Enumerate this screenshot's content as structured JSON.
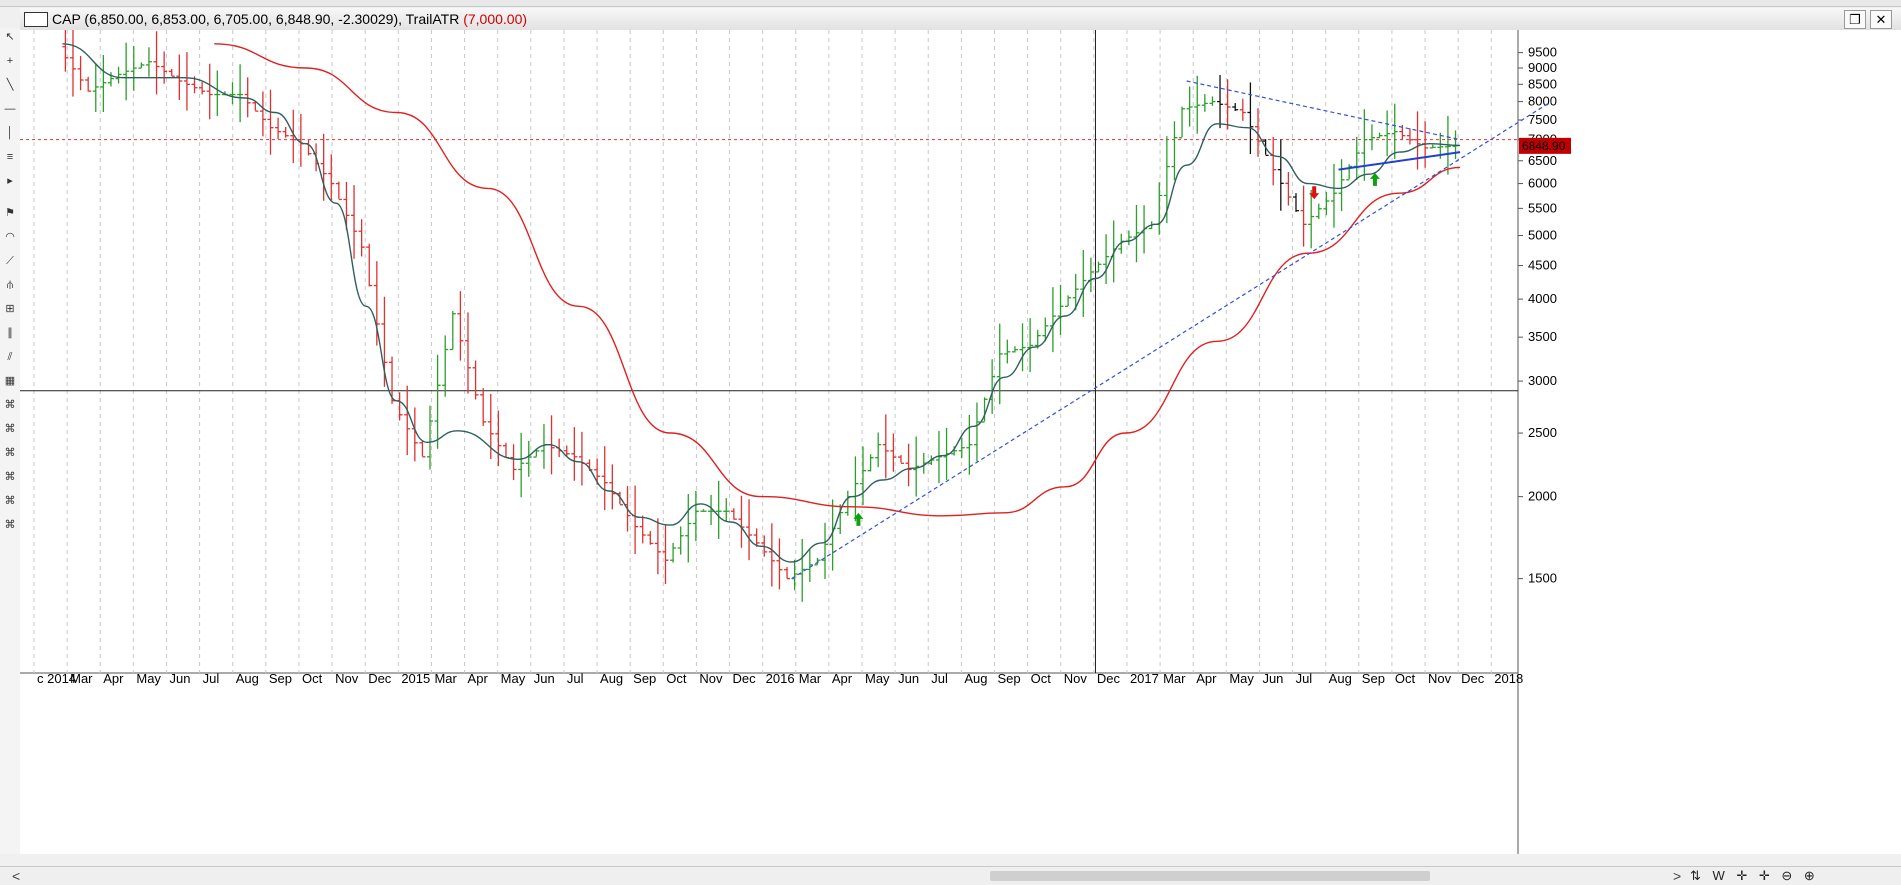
{
  "window": {
    "symbol_line": "CAP (6,850.00, 6,853.00, 6,705.00, 6,848.90, -2.30029), TrailATR",
    "indicator_param": "(7,000.00)",
    "restore_icon": "restore-icon",
    "close_icon": "close-icon"
  },
  "toolbar": {
    "tools": [
      "cursor-icon",
      "crosshair-icon",
      "line-icon",
      "hline-icon",
      "vline-icon",
      "fib-icon",
      "arrow-icon",
      "flag-icon",
      "arc-icon",
      "fan-icon",
      "pitchfork-icon",
      "gann-icon",
      "channel-icon",
      "parallel-icon",
      "grid-icon",
      "cross-tool-icon",
      "cross-tool-icon",
      "cross-tool-icon",
      "cross-tool-icon",
      "cross-tool-icon",
      "cross-tool-icon"
    ]
  },
  "scrollbar": {
    "left_arrow": "<",
    "right_arrow": ">",
    "tools_label": "⇅ W ✛ ✛ ⊖ ⊕"
  },
  "chart_data": {
    "type": "bar",
    "y_scale": "log",
    "ylim": [
      1100,
      10000
    ],
    "y_ticks": [
      1500,
      2000,
      2500,
      3000,
      3500,
      4000,
      4500,
      5000,
      5500,
      6000,
      6500,
      7000,
      7500,
      8000,
      8500,
      9000,
      9500
    ],
    "last_price_label": "6848.90",
    "reference_line": 7000,
    "crosshair": {
      "date": "2016-11",
      "price": 2900
    },
    "x_labels": [
      "c 2014",
      "Mar",
      "Apr",
      "May",
      "Jun",
      "Jul",
      "Aug",
      "Sep",
      "Oct",
      "Nov",
      "Dec",
      "2015",
      "Mar",
      "Apr",
      "May",
      "Jun",
      "Jul",
      "Aug",
      "Sep",
      "Oct",
      "Nov",
      "Dec",
      "2016",
      "Mar",
      "Apr",
      "May",
      "Jun",
      "Jul",
      "Aug",
      "Sep",
      "Oct",
      "Nov",
      "Dec",
      "2017",
      "Mar",
      "Apr",
      "May",
      "Jun",
      "Jul",
      "Aug",
      "Sep",
      "Oct",
      "Nov",
      "Dec",
      "2018"
    ],
    "price_path": [
      [
        "2014-01",
        9700
      ],
      [
        "2014-02",
        8300
      ],
      [
        "2014-03",
        8800
      ],
      [
        "2014-04",
        9200
      ],
      [
        "2014-05",
        8600
      ],
      [
        "2014-06",
        8200
      ],
      [
        "2014-07",
        8200
      ],
      [
        "2014-08",
        7300
      ],
      [
        "2014-09",
        6900
      ],
      [
        "2014-10",
        6000
      ],
      [
        "2014-11",
        4800
      ],
      [
        "2014-12",
        2800
      ],
      [
        "2015-01",
        2300
      ],
      [
        "2015-02",
        3800
      ],
      [
        "2015-03",
        2600
      ],
      [
        "2015-04",
        2200
      ],
      [
        "2015-05",
        2400
      ],
      [
        "2015-06",
        2300
      ],
      [
        "2015-07",
        2100
      ],
      [
        "2015-08",
        1800
      ],
      [
        "2015-09",
        1600
      ],
      [
        "2015-10",
        1900
      ],
      [
        "2015-11",
        1900
      ],
      [
        "2015-12",
        1700
      ],
      [
        "2016-01",
        1500
      ],
      [
        "2016-02",
        1600
      ],
      [
        "2016-03",
        2000
      ],
      [
        "2016-04",
        2400
      ],
      [
        "2016-05",
        2200
      ],
      [
        "2016-06",
        2300
      ],
      [
        "2016-07",
        2400
      ],
      [
        "2016-08",
        3300
      ],
      [
        "2016-09",
        3400
      ],
      [
        "2016-10",
        3900
      ],
      [
        "2016-11",
        4400
      ],
      [
        "2016-12",
        4900
      ],
      [
        "2017-01",
        5200
      ],
      [
        "2017-02",
        7800
      ],
      [
        "2017-03",
        8000
      ],
      [
        "2017-04",
        7700
      ],
      [
        "2017-05",
        6300
      ],
      [
        "2017-06",
        5200
      ],
      [
        "2017-07",
        5800
      ],
      [
        "2017-08",
        7000
      ],
      [
        "2017-09",
        7200
      ],
      [
        "2017-10",
        6800
      ],
      [
        "2017-11",
        6850
      ]
    ],
    "series": [
      {
        "name": "",
        "color": "#2f5f5f",
        "points": [
          [
            "2014-01",
            9800
          ],
          [
            "2014-03",
            8700
          ],
          [
            "2014-05",
            8700
          ],
          [
            "2014-07",
            8100
          ],
          [
            "2014-08",
            7700
          ],
          [
            "2014-09",
            6900
          ],
          [
            "2014-10",
            5600
          ],
          [
            "2014-11",
            3900
          ],
          [
            "2014-12",
            2800
          ],
          [
            "2015-01",
            2420
          ],
          [
            "2015-02",
            2520
          ],
          [
            "2015-04",
            2280
          ],
          [
            "2015-05",
            2400
          ],
          [
            "2015-06",
            2260
          ],
          [
            "2015-07",
            2040
          ],
          [
            "2015-08",
            1860
          ],
          [
            "2015-09",
            1810
          ],
          [
            "2015-10",
            1950
          ],
          [
            "2015-11",
            1830
          ],
          [
            "2015-12",
            1680
          ],
          [
            "2016-01",
            1590
          ],
          [
            "2016-02",
            1700
          ],
          [
            "2016-03",
            2000
          ],
          [
            "2016-04",
            2120
          ],
          [
            "2016-05",
            2210
          ],
          [
            "2016-06",
            2310
          ],
          [
            "2016-07",
            2560
          ],
          [
            "2016-08",
            3040
          ],
          [
            "2016-09",
            3380
          ],
          [
            "2016-10",
            3770
          ],
          [
            "2016-11",
            4300
          ],
          [
            "2016-12",
            4900
          ],
          [
            "2017-01",
            5200
          ],
          [
            "2017-02",
            6400
          ],
          [
            "2017-03",
            7400
          ],
          [
            "2017-04",
            7300
          ],
          [
            "2017-05",
            6600
          ],
          [
            "2017-06",
            6000
          ],
          [
            "2017-07",
            5900
          ],
          [
            "2017-08",
            6200
          ],
          [
            "2017-09",
            6700
          ],
          [
            "2017-10",
            6900
          ],
          [
            "2017-11",
            6860
          ]
        ]
      },
      {
        "name": "",
        "color": "#e02020",
        "points": [
          [
            "2014-06",
            9800
          ],
          [
            "2014-09",
            9000
          ],
          [
            "2014-12",
            7700
          ],
          [
            "2015-03",
            5900
          ],
          [
            "2015-06",
            3900
          ],
          [
            "2015-09",
            2500
          ],
          [
            "2015-12",
            2000
          ],
          [
            "2016-03",
            1930
          ],
          [
            "2016-06",
            1870
          ],
          [
            "2016-08",
            1890
          ],
          [
            "2016-10",
            2070
          ],
          [
            "2016-12",
            2500
          ],
          [
            "2017-03",
            3450
          ],
          [
            "2017-06",
            4700
          ],
          [
            "2017-09",
            5800
          ],
          [
            "2017-11",
            6350
          ]
        ]
      }
    ],
    "trendlines": [
      {
        "style": "dashed",
        "color": "#3050e0",
        "from": [
          "2016-01",
          1500
        ],
        "to": [
          "2018-02",
          8000
        ]
      },
      {
        "style": "dashed",
        "color": "#3050e0",
        "from": [
          "2017-02",
          8600
        ],
        "to": [
          "2017-11",
          7000
        ]
      },
      {
        "style": "solid",
        "color": "#2040d0",
        "from": [
          "2017-07",
          6300
        ],
        "to": [
          "2017-11",
          6700
        ]
      }
    ],
    "signals": [
      {
        "date": "2016-03",
        "price": 1850,
        "direction": "up",
        "color": "#10a010"
      },
      {
        "date": "2017-06",
        "price": 5800,
        "direction": "down",
        "color": "#e01010"
      },
      {
        "date": "2017-08",
        "price": 6100,
        "direction": "up",
        "color": "#10a010"
      }
    ],
    "grid": "vertical-dashed",
    "bar_colors": {
      "up": "#2aa02a",
      "down": "#e03030",
      "neutral": "#111111"
    },
    "legend": "none"
  }
}
